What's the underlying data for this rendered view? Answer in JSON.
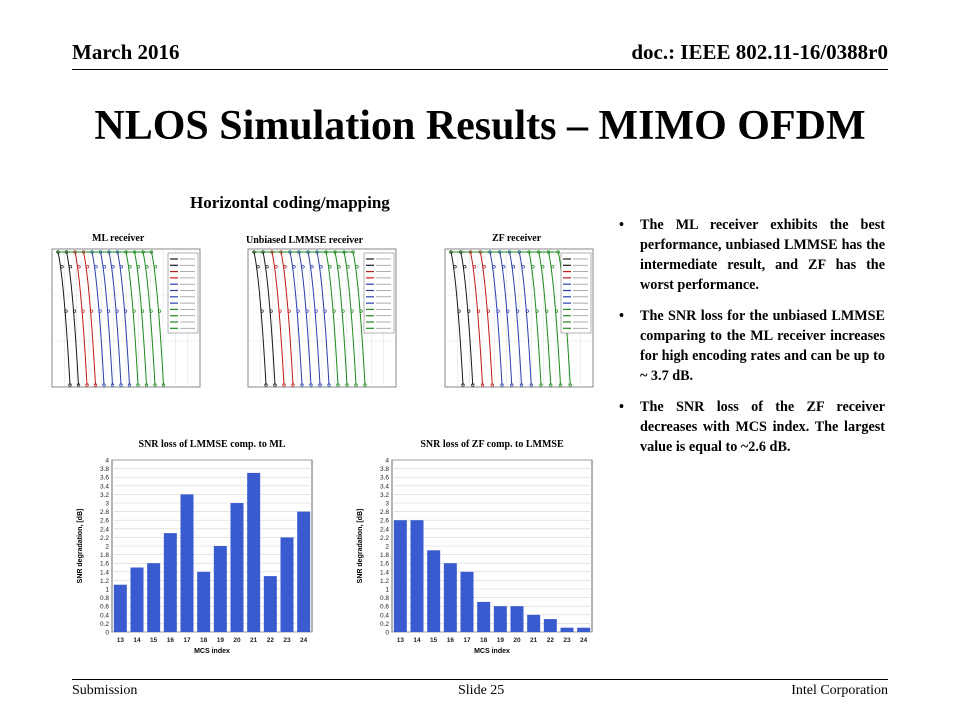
{
  "header": {
    "left": "March 2016",
    "right": "doc.: IEEE 802.11-16/0388r0"
  },
  "title": "NLOS Simulation Results – MIMO OFDM",
  "subtitle": "Horizontal coding/mapping",
  "per_plots": [
    {
      "label": "ML receiver"
    },
    {
      "label": "Unbiased LMMSE receiver"
    },
    {
      "label": "ZF receiver"
    }
  ],
  "bullets": [
    "The ML receiver exhibits the best performance, unbiased LMMSE has the intermediate result, and ZF has the worst performance.",
    "The SNR loss for the unbiased LMMSE comparing to the ML receiver increases for high encoding rates and can be up to ~ 3.7 dB.",
    "The SNR loss of the ZF receiver decreases with MCS index. The largest value is equal to ~2.6 dB."
  ],
  "footer": {
    "left": "Submission",
    "center": "Slide 25",
    "right": "Intel Corporation"
  },
  "colors": {
    "bar": "#3a5bcf",
    "mcs_low": "#1a1a1a",
    "mcs_mid1": "#c01c1c",
    "mcs_mid2": "#2a3fb0",
    "mcs_high": "#1e8a1e"
  },
  "chart_data": [
    {
      "type": "bar",
      "title": "SNR loss of LMMSE comp. to ML",
      "xlabel": "MCS index",
      "ylabel": "SNR degradation, [dB]",
      "categories": [
        "13",
        "14",
        "15",
        "16",
        "17",
        "18",
        "19",
        "20",
        "21",
        "22",
        "23",
        "24"
      ],
      "values": [
        1.1,
        1.5,
        1.6,
        2.3,
        3.2,
        1.4,
        2.0,
        3.0,
        3.7,
        1.3,
        2.2,
        2.8
      ],
      "ylim": [
        0,
        4
      ],
      "yticks": [
        "0",
        "0.2",
        "0.4",
        "0.6",
        "0.8",
        "1",
        "1.2",
        "1.4",
        "1.6",
        "1.8",
        "2",
        "2.2",
        "2.4",
        "2.6",
        "2.8",
        "3",
        "3.2",
        "3.4",
        "3.6",
        "3.8",
        "4"
      ],
      "grid": true
    },
    {
      "type": "bar",
      "title": "SNR loss of ZF comp. to LMMSE",
      "xlabel": "MCS index",
      "ylabel": "SNR degradation, [dB]",
      "categories": [
        "13",
        "14",
        "15",
        "16",
        "17",
        "18",
        "19",
        "20",
        "21",
        "22",
        "23",
        "24"
      ],
      "values": [
        2.6,
        2.6,
        1.9,
        1.6,
        1.4,
        0.7,
        0.6,
        0.6,
        0.4,
        0.3,
        0.1,
        0.1
      ],
      "ylim": [
        0,
        4
      ],
      "yticks": [
        "0",
        "0.2",
        "0.4",
        "0.6",
        "0.8",
        "1",
        "1.2",
        "1.4",
        "1.6",
        "1.8",
        "2",
        "2.2",
        "2.4",
        "2.6",
        "2.8",
        "3",
        "3.2",
        "3.4",
        "3.6",
        "3.8",
        "4"
      ],
      "grid": true
    }
  ]
}
